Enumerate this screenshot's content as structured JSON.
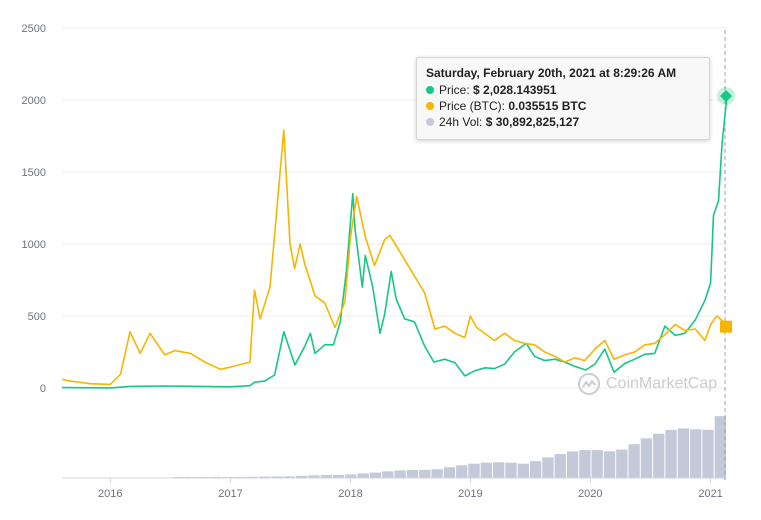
{
  "chart_data": {
    "type": "line",
    "title": "",
    "xlabel": "",
    "ylabel": "",
    "ylim": [
      0,
      2500
    ],
    "y_ticks": [
      "2500",
      "2000",
      "1500",
      "1000",
      "500",
      "0"
    ],
    "x_ticks": [
      "2016",
      "2017",
      "2018",
      "2019",
      "2020",
      "2021"
    ],
    "x_range": [
      "2015-08-07",
      "2021-02-20"
    ],
    "series": [
      {
        "name": "Price",
        "color": "#16c784",
        "points": [
          [
            "2015-08-07",
            2.8
          ],
          [
            "2016-01-01",
            1
          ],
          [
            "2016-03-01",
            11
          ],
          [
            "2016-06-15",
            14
          ],
          [
            "2016-09-01",
            12
          ],
          [
            "2016-12-31",
            8
          ],
          [
            "2017-03-01",
            16
          ],
          [
            "2017-03-15",
            40
          ],
          [
            "2017-04-15",
            48
          ],
          [
            "2017-05-15",
            90
          ],
          [
            "2017-06-12",
            390
          ],
          [
            "2017-07-16",
            160
          ],
          [
            "2017-08-15",
            290
          ],
          [
            "2017-09-01",
            380
          ],
          [
            "2017-09-15",
            240
          ],
          [
            "2017-10-15",
            300
          ],
          [
            "2017-11-10",
            300
          ],
          [
            "2017-12-01",
            460
          ],
          [
            "2017-12-20",
            820
          ],
          [
            "2018-01-08",
            1350
          ],
          [
            "2018-01-15",
            1100
          ],
          [
            "2018-02-06",
            700
          ],
          [
            "2018-02-15",
            920
          ],
          [
            "2018-03-10",
            700
          ],
          [
            "2018-04-01",
            380
          ],
          [
            "2018-04-15",
            510
          ],
          [
            "2018-05-05",
            810
          ],
          [
            "2018-05-20",
            620
          ],
          [
            "2018-06-15",
            480
          ],
          [
            "2018-07-15",
            460
          ],
          [
            "2018-08-15",
            290
          ],
          [
            "2018-09-12",
            180
          ],
          [
            "2018-10-15",
            200
          ],
          [
            "2018-11-15",
            175
          ],
          [
            "2018-12-15",
            84
          ],
          [
            "2019-01-15",
            120
          ],
          [
            "2019-02-15",
            140
          ],
          [
            "2019-03-15",
            135
          ],
          [
            "2019-04-15",
            165
          ],
          [
            "2019-05-15",
            250
          ],
          [
            "2019-06-20",
            310
          ],
          [
            "2019-07-15",
            220
          ],
          [
            "2019-08-15",
            190
          ],
          [
            "2019-09-15",
            200
          ],
          [
            "2019-10-15",
            180
          ],
          [
            "2019-11-15",
            150
          ],
          [
            "2019-12-18",
            125
          ],
          [
            "2020-01-15",
            165
          ],
          [
            "2020-02-14",
            270
          ],
          [
            "2020-03-13",
            110
          ],
          [
            "2020-04-15",
            170
          ],
          [
            "2020-05-15",
            200
          ],
          [
            "2020-06-15",
            235
          ],
          [
            "2020-07-15",
            240
          ],
          [
            "2020-08-15",
            430
          ],
          [
            "2020-09-15",
            365
          ],
          [
            "2020-10-15",
            380
          ],
          [
            "2020-11-15",
            470
          ],
          [
            "2020-12-15",
            610
          ],
          [
            "2021-01-01",
            730
          ],
          [
            "2021-01-10",
            1200
          ],
          [
            "2021-01-25",
            1300
          ],
          [
            "2021-02-05",
            1700
          ],
          [
            "2021-02-20",
            2028.143951
          ]
        ]
      },
      {
        "name": "Price (BTC)",
        "color": "#f7b500",
        "points": [
          [
            "2015-08-07",
            60
          ],
          [
            "2015-09-01",
            48
          ],
          [
            "2015-11-01",
            30
          ],
          [
            "2016-01-01",
            25
          ],
          [
            "2016-02-01",
            95
          ],
          [
            "2016-03-01",
            390
          ],
          [
            "2016-04-01",
            240
          ],
          [
            "2016-05-01",
            380
          ],
          [
            "2016-06-15",
            230
          ],
          [
            "2016-07-15",
            260
          ],
          [
            "2016-09-01",
            240
          ],
          [
            "2016-10-15",
            180
          ],
          [
            "2016-12-01",
            130
          ],
          [
            "2017-01-01",
            145
          ],
          [
            "2017-03-01",
            180
          ],
          [
            "2017-03-15",
            680
          ],
          [
            "2017-04-01",
            480
          ],
          [
            "2017-05-01",
            700
          ],
          [
            "2017-06-12",
            1790
          ],
          [
            "2017-07-01",
            1000
          ],
          [
            "2017-07-15",
            830
          ],
          [
            "2017-08-01",
            1000
          ],
          [
            "2017-08-15",
            860
          ],
          [
            "2017-09-15",
            640
          ],
          [
            "2017-10-15",
            590
          ],
          [
            "2017-11-15",
            420
          ],
          [
            "2017-12-15",
            600
          ],
          [
            "2018-01-01",
            1050
          ],
          [
            "2018-01-20",
            1330
          ],
          [
            "2018-02-15",
            1050
          ],
          [
            "2018-03-15",
            850
          ],
          [
            "2018-04-15",
            1030
          ],
          [
            "2018-05-01",
            1060
          ],
          [
            "2018-06-15",
            890
          ],
          [
            "2018-08-15",
            660
          ],
          [
            "2018-09-15",
            410
          ],
          [
            "2018-10-15",
            430
          ],
          [
            "2018-11-15",
            380
          ],
          [
            "2018-12-15",
            350
          ],
          [
            "2019-01-01",
            500
          ],
          [
            "2019-01-20",
            420
          ],
          [
            "2019-03-15",
            330
          ],
          [
            "2019-04-15",
            380
          ],
          [
            "2019-05-15",
            330
          ],
          [
            "2019-06-15",
            310
          ],
          [
            "2019-07-15",
            300
          ],
          [
            "2019-08-15",
            250
          ],
          [
            "2019-09-15",
            220
          ],
          [
            "2019-10-15",
            180
          ],
          [
            "2019-11-15",
            210
          ],
          [
            "2019-12-15",
            190
          ],
          [
            "2020-01-15",
            270
          ],
          [
            "2020-02-14",
            330
          ],
          [
            "2020-03-13",
            200
          ],
          [
            "2020-04-15",
            230
          ],
          [
            "2020-05-15",
            250
          ],
          [
            "2020-06-15",
            300
          ],
          [
            "2020-07-15",
            310
          ],
          [
            "2020-08-15",
            370
          ],
          [
            "2020-09-15",
            440
          ],
          [
            "2020-10-15",
            400
          ],
          [
            "2020-11-15",
            410
          ],
          [
            "2020-12-15",
            330
          ],
          [
            "2021-01-01",
            440
          ],
          [
            "2021-01-20",
            500
          ],
          [
            "2021-02-20",
            440
          ]
        ]
      }
    ],
    "volume_series_name": "24h Vol",
    "volume_color": "#c4c9d9",
    "volume_bars": [
      0,
      0,
      0,
      0,
      0,
      0,
      0,
      0,
      0,
      1,
      1,
      1,
      2,
      2,
      2,
      3,
      3,
      3,
      3,
      4,
      5,
      6,
      7,
      8,
      9,
      10,
      12,
      14,
      16,
      18,
      20,
      22,
      24,
      26,
      28,
      30,
      32,
      34,
      36,
      40,
      44,
      48,
      52,
      56,
      60,
      64,
      68,
      74,
      80,
      88,
      96,
      104,
      115,
      130
    ],
    "grid": true,
    "legend": "none",
    "tooltip": {
      "date": "Saturday, February 20th, 2021 at 8:29:26 AM",
      "price_label": "Price:",
      "price_value": "$ 2,028.143951",
      "btc_label": "Price (BTC):",
      "btc_value": "0.035515 BTC",
      "vol_label": "24h Vol:",
      "vol_value": "$ 30,892,825,127"
    },
    "watermark": "CoinMarketCap"
  }
}
